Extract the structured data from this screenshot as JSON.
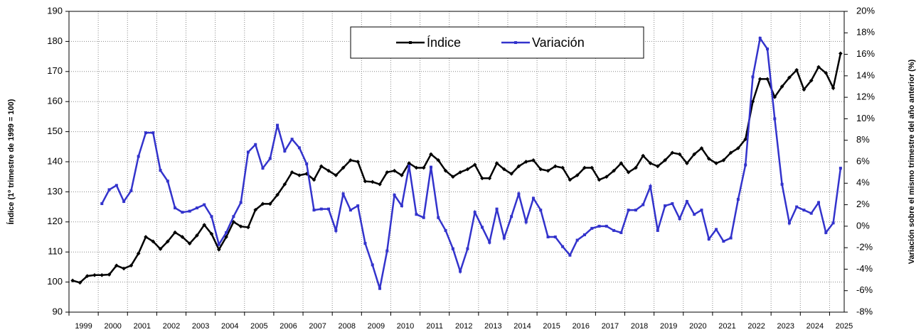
{
  "chart_data": {
    "type": "line",
    "categories": [
      "1999",
      null,
      null,
      null,
      "2000",
      null,
      null,
      null,
      "2001",
      null,
      null,
      null,
      "2002",
      null,
      null,
      null,
      "2003",
      null,
      null,
      null,
      "2004",
      null,
      null,
      null,
      "2005",
      null,
      null,
      null,
      "2006",
      null,
      null,
      null,
      "2007",
      null,
      null,
      null,
      "2008",
      null,
      null,
      null,
      "2009",
      null,
      null,
      null,
      "2010",
      null,
      null,
      null,
      "2011",
      null,
      null,
      null,
      "2012",
      null,
      null,
      null,
      "2013",
      null,
      null,
      null,
      "2014",
      null,
      null,
      null,
      "2015",
      null,
      null,
      null,
      "2016",
      null,
      null,
      null,
      "2017",
      null,
      null,
      null,
      "2018",
      null,
      null,
      null,
      "2019",
      null,
      null,
      null,
      "2020",
      null,
      null,
      null,
      "2021",
      null,
      null,
      null,
      "2022",
      null,
      null,
      null,
      "2023",
      null,
      null,
      null,
      "2024",
      null,
      null,
      null,
      "2025",
      null
    ],
    "series": [
      {
        "name": "Índice",
        "color": "#000000",
        "axis": "y",
        "values": [
          100.5,
          99.8,
          102,
          102.3,
          102.3,
          102.5,
          105.5,
          104.5,
          105.5,
          109.5,
          115,
          113.5,
          111,
          113.5,
          116.5,
          115,
          112.8,
          115.5,
          119,
          116,
          110.8,
          115,
          120,
          118.5,
          118.2,
          124,
          126,
          126,
          129,
          132.5,
          136.5,
          135.5,
          136,
          134,
          138.5,
          137,
          135.5,
          138,
          140.5,
          140,
          133.5,
          133.3,
          132.5,
          136.5,
          137,
          135.5,
          139.5,
          138,
          138,
          142.5,
          140.5,
          137,
          135,
          136.5,
          137.5,
          139,
          134.5,
          134.5,
          139.5,
          137.5,
          136,
          138.5,
          140,
          140.5,
          137.5,
          137,
          138.5,
          138,
          134,
          135.5,
          138,
          138,
          134,
          135,
          137,
          139.5,
          136.5,
          138,
          142,
          139.5,
          138.5,
          140.5,
          143,
          142.5,
          139.5,
          142.5,
          144.5,
          141,
          139.5,
          140.5,
          143,
          144.5,
          147.5,
          160,
          167.5,
          167.5,
          161.5,
          165,
          168,
          170.5,
          164,
          167,
          171.5,
          169.5,
          164.5,
          176
        ]
      },
      {
        "name": "Variación",
        "color": "#3333cc",
        "axis": "y2",
        "values": [
          null,
          null,
          null,
          null,
          2.1,
          3.4,
          3.8,
          2.3,
          3.3,
          6.5,
          8.7,
          8.7,
          5.2,
          4.2,
          1.7,
          1.3,
          1.4,
          1.7,
          2.0,
          0.9,
          -1.7,
          -0.6,
          0.9,
          2.2,
          6.9,
          7.6,
          5.4,
          6.3,
          9.4,
          7.0,
          8.1,
          7.3,
          5.8,
          1.5,
          1.6,
          1.6,
          -0.4,
          3.0,
          1.5,
          1.9,
          -1.6,
          -3.6,
          -5.8,
          -2.3,
          2.9,
          1.9,
          5.6,
          1.1,
          0.8,
          5.5,
          0.8,
          -0.4,
          -2.1,
          -4.2,
          -2.1,
          1.3,
          -0.1,
          -1.5,
          1.6,
          -1.1,
          0.9,
          3.0,
          0.4,
          2.6,
          1.5,
          -1.0,
          -1.0,
          -1.9,
          -2.7,
          -1.3,
          -0.8,
          -0.2,
          0.0,
          0.0,
          -0.4,
          -0.6,
          1.5,
          1.5,
          2.0,
          3.7,
          -0.4,
          1.9,
          2.1,
          0.7,
          2.3,
          1.1,
          1.5,
          -1.2,
          -0.3,
          -1.4,
          -1.1,
          2.5,
          5.7,
          13.9,
          17.5,
          16.5,
          10.0,
          3.9,
          0.3,
          1.8,
          1.5,
          1.2,
          2.2,
          -0.6,
          0.3,
          5.4
        ]
      }
    ],
    "ylabel": "Índice (1º trimestre de 1999 = 100)",
    "y2label": "Variación sobre el mismo trimestre del año anterior (%)",
    "ylim": [
      90,
      190
    ],
    "yticks": [
      90,
      100,
      110,
      120,
      130,
      140,
      150,
      160,
      170,
      180,
      190
    ],
    "y2lim": [
      -8,
      20
    ],
    "y2ticks": [
      {
        "value": -8,
        "label": "-8%"
      },
      {
        "value": -6,
        "label": "-6%"
      },
      {
        "value": -4,
        "label": "-4%"
      },
      {
        "value": -2,
        "label": "-2%"
      },
      {
        "value": 0,
        "label": "0%"
      },
      {
        "value": 2,
        "label": "2%"
      },
      {
        "value": 4,
        "label": "4%"
      },
      {
        "value": 6,
        "label": "6%"
      },
      {
        "value": 8,
        "label": "8%"
      },
      {
        "value": 10,
        "label": "10%"
      },
      {
        "value": 12,
        "label": "12%"
      },
      {
        "value": 14,
        "label": "14%"
      },
      {
        "value": 16,
        "label": "16%"
      },
      {
        "value": 18,
        "label": "18%"
      },
      {
        "value": 20,
        "label": "20%"
      }
    ],
    "grid": true,
    "legend": "top"
  }
}
